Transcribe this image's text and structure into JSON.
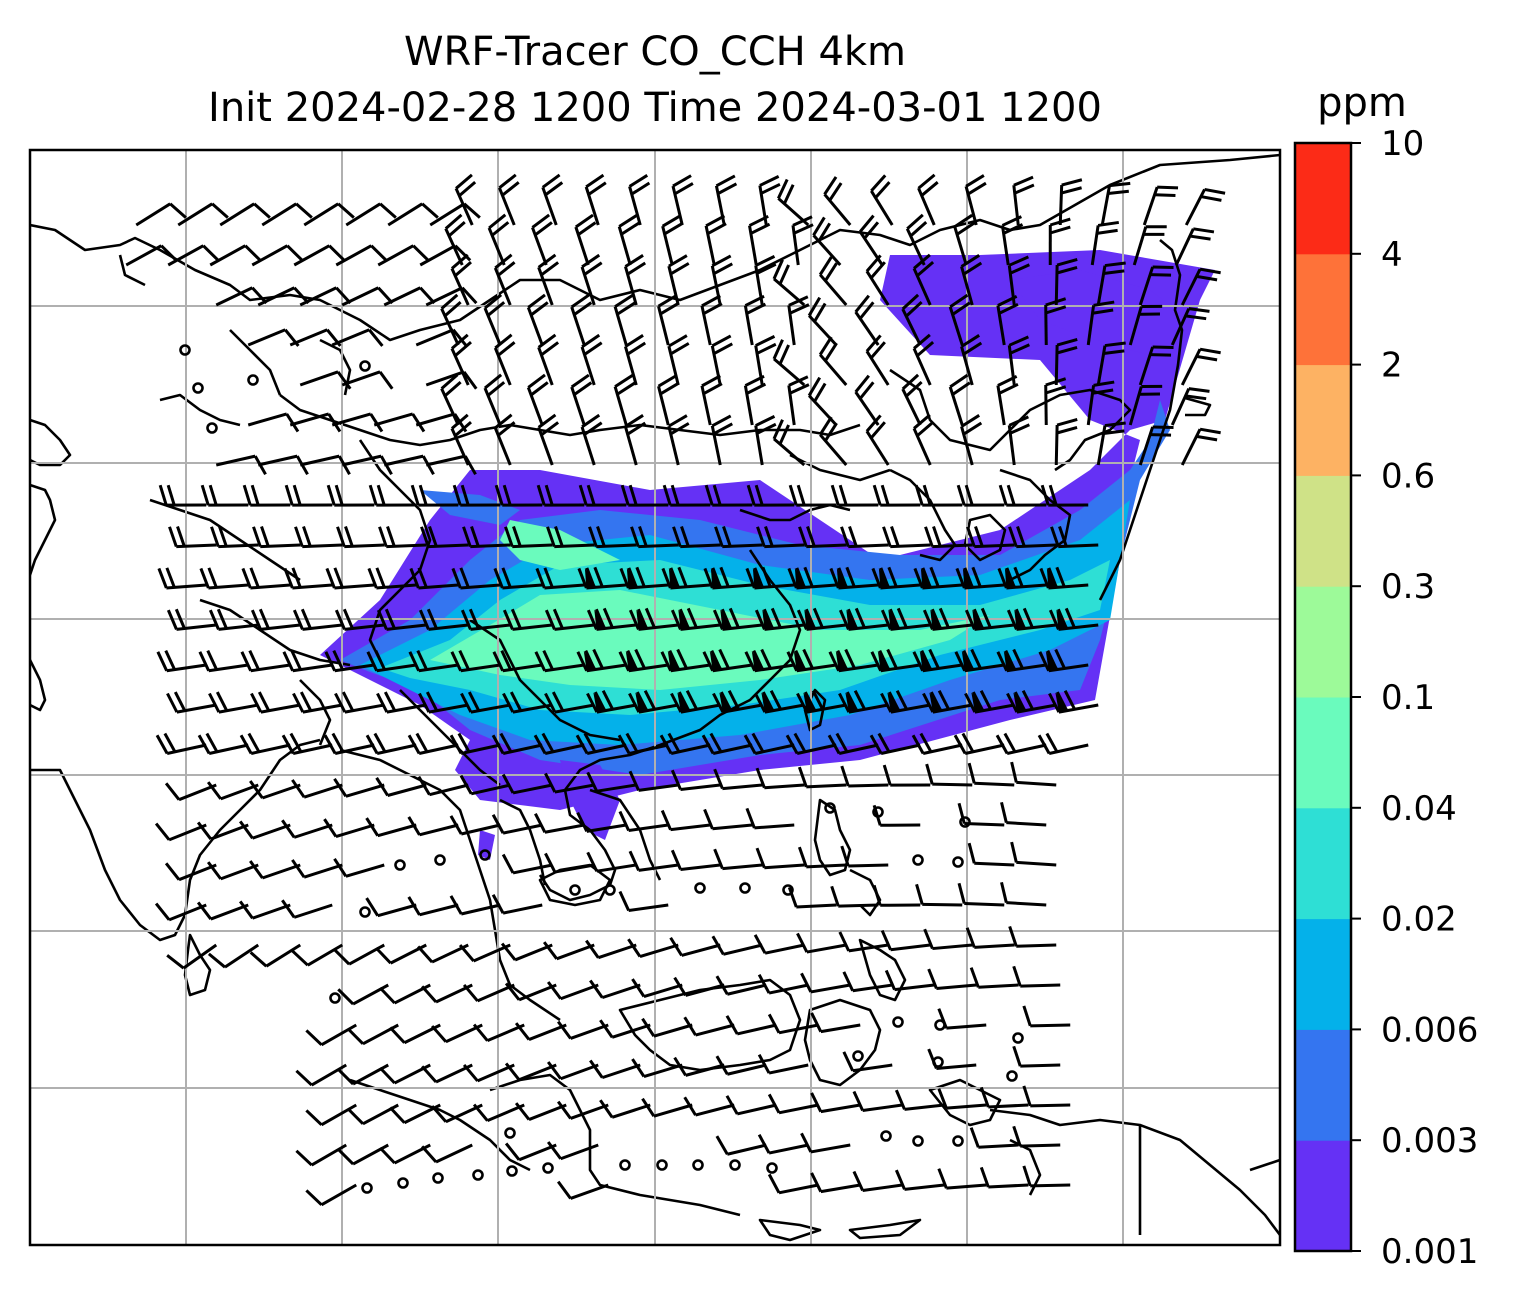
{
  "title_line1": "WRF-Tracer CO_CCH 4km",
  "title_line2": "Init 2024-02-28 1200 Time 2024-03-01 1200",
  "colorbar": {
    "unit": "ppm",
    "levels": [
      "0.001",
      "0.003",
      "0.006",
      "0.02",
      "0.04",
      "0.1",
      "0.3",
      "0.6",
      "2",
      "4",
      "10"
    ],
    "colors": [
      "#6531f5",
      "#3475f0",
      "#04b1ea",
      "#2edfd5",
      "#6afbbd",
      "#9dfa99",
      "#cfe287",
      "#fdb263",
      "#fe7239",
      "#fc2b17"
    ]
  },
  "map": {
    "gridlines": "on",
    "features": [
      "coastlines",
      "country borders",
      "wind barbs"
    ],
    "field_colors": {
      "outer": "#6531f5",
      "low": "#3475f0",
      "mid": "#04b1ea",
      "core": "#2edfd5",
      "high": "#6afbbd",
      "peak": "#9dfa99"
    }
  }
}
